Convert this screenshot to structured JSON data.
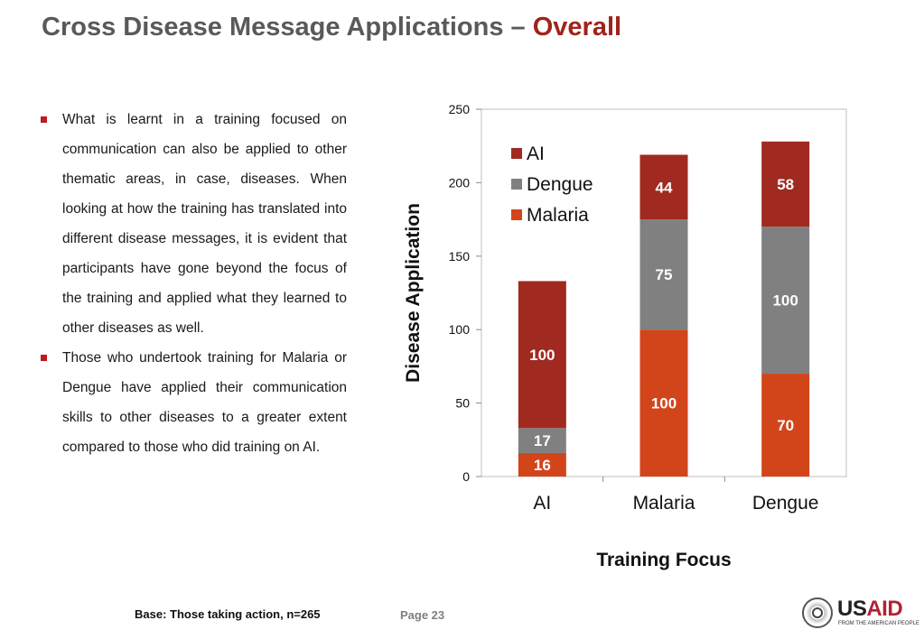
{
  "title": {
    "main": "Cross Disease Message Applications –",
    "accent": "Overall"
  },
  "bullets": [
    "What is learnt in a training focused on communication can also be applied to other thematic areas, in case, diseases. When looking at how the training has translated into different disease messages, it is evident that participants have gone beyond the focus of the training and applied what they learned to other diseases as well.",
    "Those who undertook training for Malaria or Dengue have applied their communication skills to other diseases to a greater extent compared to those who did training on AI."
  ],
  "footer": {
    "base": "Base: Those taking action, n=265",
    "page": "Page 23"
  },
  "logo": {
    "brand_prefix": "US",
    "brand_suffix": "AID",
    "tagline": "FROM THE AMERICAN PEOPLE"
  },
  "colors": {
    "title_gray": "#595959",
    "title_red": "#a0231b",
    "bullet_red": "#c0191e"
  },
  "chart_data": {
    "type": "bar",
    "stacked": true,
    "categories": [
      "AI",
      "Malaria",
      "Dengue"
    ],
    "series": [
      {
        "name": "Malaria",
        "values": [
          16,
          100,
          70
        ],
        "color": "#d2451b"
      },
      {
        "name": "Dengue",
        "values": [
          17,
          75,
          100
        ],
        "color": "#808080"
      },
      {
        "name": "AI",
        "values": [
          100,
          44,
          58
        ],
        "color": "#a02a20"
      }
    ],
    "xlabel": "Training Focus",
    "ylabel": "Disease Application",
    "ylim": [
      0,
      250
    ],
    "yticks": [
      0,
      50,
      100,
      150,
      200,
      250
    ],
    "grid": false,
    "legend": {
      "position": "top-left-inside",
      "order": [
        "AI",
        "Dengue",
        "Malaria"
      ]
    }
  }
}
